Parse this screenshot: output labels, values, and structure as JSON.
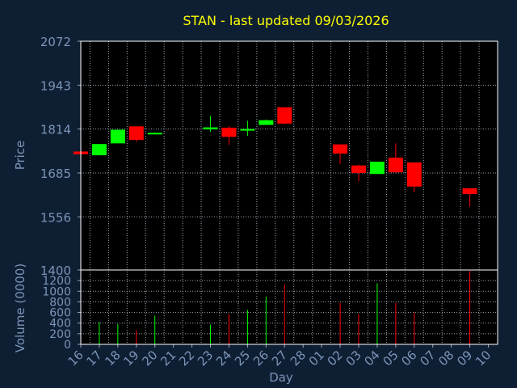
{
  "chart_data": {
    "type": "candlestick",
    "title": "STAN - last updated 09/03/2026",
    "price_axis": {
      "label": "Price",
      "ticks": [
        2072,
        1943,
        1814,
        1685,
        1556,
        1400
      ],
      "range": [
        1400,
        2072
      ]
    },
    "volume_axis": {
      "label": "Volume (0000)",
      "ticks": [
        1200,
        1000,
        800,
        600,
        400,
        200,
        0
      ],
      "range": [
        0,
        1400
      ]
    },
    "xlabel": "Day",
    "categories": [
      "16",
      "17",
      "18",
      "19",
      "20",
      "21",
      "22",
      "23",
      "24",
      "25",
      "26",
      "27",
      "28",
      "01",
      "02",
      "03",
      "04",
      "05",
      "06",
      "07",
      "08",
      "09",
      "10"
    ],
    "grid": true,
    "colors": {
      "background": "#0f1f33",
      "plot_background": "#000000",
      "up": "#00ff00",
      "down": "#ff0000",
      "title": "#ffff00",
      "axis_text": "#7a94b8",
      "grid": "#9aa6b2",
      "frame": "#ffffff"
    },
    "candles": [
      {
        "day": "16",
        "open": 1748,
        "high": 1748,
        "low": 1740,
        "close": 1740
      },
      {
        "day": "17",
        "open": 1737,
        "high": 1770,
        "low": 1737,
        "close": 1770
      },
      {
        "day": "18",
        "open": 1772,
        "high": 1812,
        "low": 1772,
        "close": 1812
      },
      {
        "day": "19",
        "open": 1822,
        "high": 1822,
        "low": 1776,
        "close": 1782
      },
      {
        "day": "20",
        "open": 1801,
        "high": 1804,
        "low": 1800,
        "close": 1803
      },
      {
        "day": "23",
        "open": 1813,
        "high": 1853,
        "low": 1806,
        "close": 1819
      },
      {
        "day": "24",
        "open": 1818,
        "high": 1822,
        "low": 1768,
        "close": 1791
      },
      {
        "day": "25",
        "open": 1810,
        "high": 1838,
        "low": 1794,
        "close": 1814
      },
      {
        "day": "26",
        "open": 1826,
        "high": 1842,
        "low": 1826,
        "close": 1840
      },
      {
        "day": "27",
        "open": 1878,
        "high": 1878,
        "low": 1828,
        "close": 1830
      },
      {
        "day": "02",
        "open": 1769,
        "high": 1769,
        "low": 1712,
        "close": 1742
      },
      {
        "day": "03",
        "open": 1707,
        "high": 1710,
        "low": 1661,
        "close": 1685
      },
      {
        "day": "04",
        "open": 1682,
        "high": 1718,
        "low": 1682,
        "close": 1718
      },
      {
        "day": "05",
        "open": 1730,
        "high": 1772,
        "low": 1685,
        "close": 1687
      },
      {
        "day": "06",
        "open": 1716,
        "high": 1716,
        "low": 1628,
        "close": 1645
      },
      {
        "day": "09",
        "open": 1640,
        "high": 1640,
        "low": 1586,
        "close": 1623
      }
    ],
    "volume": [
      {
        "day": "16",
        "value": 0,
        "dir": "down"
      },
      {
        "day": "17",
        "value": 420,
        "dir": "up"
      },
      {
        "day": "18",
        "value": 380,
        "dir": "up"
      },
      {
        "day": "19",
        "value": 270,
        "dir": "down"
      },
      {
        "day": "20",
        "value": 540,
        "dir": "up"
      },
      {
        "day": "23",
        "value": 370,
        "dir": "up"
      },
      {
        "day": "24",
        "value": 570,
        "dir": "down"
      },
      {
        "day": "25",
        "value": 650,
        "dir": "up"
      },
      {
        "day": "26",
        "value": 900,
        "dir": "up"
      },
      {
        "day": "27",
        "value": 1130,
        "dir": "down"
      },
      {
        "day": "02",
        "value": 780,
        "dir": "down"
      },
      {
        "day": "03",
        "value": 570,
        "dir": "down"
      },
      {
        "day": "04",
        "value": 1150,
        "dir": "up"
      },
      {
        "day": "05",
        "value": 780,
        "dir": "down"
      },
      {
        "day": "06",
        "value": 600,
        "dir": "down"
      },
      {
        "day": "09",
        "value": 1380,
        "dir": "down"
      }
    ]
  }
}
